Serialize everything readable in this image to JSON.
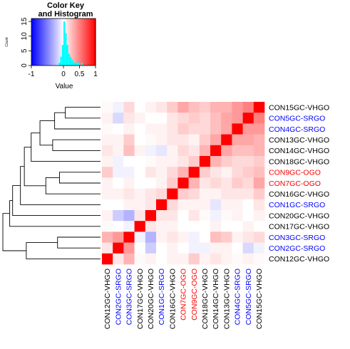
{
  "chart_data": {
    "type": "heatmap",
    "title": "",
    "colors": {
      "low": "#0000FF",
      "mid": "#FFFFFF",
      "high": "#FF0000",
      "histogram": "#00FFFF",
      "label_default": "#000000",
      "label_srgo": "#0000FF",
      "label_ogo": "#FF0000"
    },
    "color_key": {
      "title_line1": "Color Key",
      "title_line2": "and Histogram",
      "xlabel": "Value",
      "ylabel": "Count",
      "x_ticks": [
        "-1",
        "0",
        "0.5",
        "1"
      ],
      "x_tick_values": [
        -1,
        0,
        0.5,
        1
      ],
      "y_ticks": [
        "0",
        "5",
        "10",
        "15"
      ],
      "y_tick_values": [
        0,
        5,
        10,
        15
      ],
      "xlim": [
        -1,
        1
      ],
      "ylim": [
        0,
        16
      ],
      "histogram": [
        {
          "x0": -0.15,
          "x1": -0.1,
          "count": 1
        },
        {
          "x0": -0.1,
          "x1": -0.05,
          "count": 3
        },
        {
          "x0": -0.05,
          "x1": 0.0,
          "count": 7
        },
        {
          "x0": 0.0,
          "x1": 0.05,
          "count": 15
        },
        {
          "x0": 0.05,
          "x1": 0.1,
          "count": 11
        },
        {
          "x0": 0.1,
          "x1": 0.15,
          "count": 7
        },
        {
          "x0": 0.15,
          "x1": 0.2,
          "count": 4
        },
        {
          "x0": 0.2,
          "x1": 0.25,
          "count": 3
        },
        {
          "x0": 0.25,
          "x1": 0.3,
          "count": 2
        },
        {
          "x0": 0.3,
          "x1": 0.35,
          "count": 1
        },
        {
          "x0": 0.35,
          "x1": 0.4,
          "count": 1
        },
        {
          "x0": 0.4,
          "x1": 0.45,
          "count": 1
        },
        {
          "x0": 0.45,
          "x1": 0.5,
          "count": 1
        },
        {
          "x0": 0.55,
          "x1": 0.6,
          "count": 1
        }
      ]
    },
    "rows": [
      {
        "label": "CON15GC-VHGO",
        "group": "VHGO"
      },
      {
        "label": "CON5GC-SRGO",
        "group": "SRGO"
      },
      {
        "label": "CON4GC-SRGO",
        "group": "SRGO"
      },
      {
        "label": "CON13GC-VHGO",
        "group": "VHGO"
      },
      {
        "label": "CON14GC-VHGO",
        "group": "VHGO"
      },
      {
        "label": "CON18GC-VHGO",
        "group": "VHGO"
      },
      {
        "label": "CON9GC-OGO",
        "group": "OGO"
      },
      {
        "label": "CON7GC-OGO",
        "group": "OGO"
      },
      {
        "label": "CON16GC-VHGO",
        "group": "VHGO"
      },
      {
        "label": "CON1GC-SRGO",
        "group": "SRGO"
      },
      {
        "label": "CON20GC-VHGO",
        "group": "VHGO"
      },
      {
        "label": "CON17GC-VHGO",
        "group": "VHGO"
      },
      {
        "label": "CON3GC-SRGO",
        "group": "SRGO"
      },
      {
        "label": "CON2GC-SRGO",
        "group": "SRGO"
      },
      {
        "label": "CON12GC-VHGO",
        "group": "VHGO"
      }
    ],
    "columns": [
      {
        "label": "CON12GC-VHGO",
        "group": "VHGO"
      },
      {
        "label": "CON2GC-SRGO",
        "group": "SRGO"
      },
      {
        "label": "CON3GC-SRGO",
        "group": "SRGO"
      },
      {
        "label": "CON17GC-VHGO",
        "group": "VHGO"
      },
      {
        "label": "CON20GC-VHGO",
        "group": "VHGO"
      },
      {
        "label": "CON1GC-SRGO",
        "group": "SRGO"
      },
      {
        "label": "CON16GC-VHGO",
        "group": "VHGO"
      },
      {
        "label": "CON7GC-OGO",
        "group": "OGO"
      },
      {
        "label": "CON9GC-OGO",
        "group": "OGO"
      },
      {
        "label": "CON18GC-VHGO",
        "group": "VHGO"
      },
      {
        "label": "CON14GC-VHGO",
        "group": "VHGO"
      },
      {
        "label": "CON13GC-VHGO",
        "group": "VHGO"
      },
      {
        "label": "CON4GC-SRGO",
        "group": "SRGO"
      },
      {
        "label": "CON5GC-SRGO",
        "group": "SRGO"
      },
      {
        "label": "CON15GC-VHGO",
        "group": "VHGO"
      }
    ],
    "values": [
      [
        0.02,
        -0.05,
        0.15,
        0.0,
        0.05,
        0.1,
        0.2,
        0.35,
        0.25,
        0.2,
        0.3,
        0.3,
        0.4,
        0.5,
        1.0
      ],
      [
        0.05,
        -0.15,
        0.1,
        0.05,
        0.0,
        0.0,
        0.1,
        0.15,
        0.2,
        0.15,
        0.25,
        0.35,
        0.4,
        1.0,
        0.5
      ],
      [
        0.02,
        0.0,
        0.05,
        0.0,
        0.05,
        0.05,
        0.1,
        0.2,
        0.15,
        0.15,
        0.25,
        0.35,
        1.0,
        0.4,
        0.4
      ],
      [
        0.05,
        0.05,
        0.2,
        0.0,
        0.02,
        0.05,
        0.1,
        0.1,
        0.05,
        0.2,
        0.35,
        1.0,
        0.35,
        0.35,
        0.3
      ],
      [
        0.1,
        0.05,
        0.25,
        0.05,
        -0.05,
        -0.1,
        0.05,
        0.15,
        0.1,
        0.3,
        1.0,
        0.35,
        0.25,
        0.25,
        0.3
      ],
      [
        0.05,
        -0.05,
        0.0,
        0.0,
        0.02,
        0.05,
        0.05,
        0.1,
        0.2,
        1.0,
        0.3,
        0.2,
        0.15,
        0.15,
        0.2
      ],
      [
        0.2,
        -0.05,
        -0.05,
        0.0,
        0.1,
        0.05,
        0.15,
        0.3,
        1.0,
        0.2,
        0.1,
        0.05,
        0.15,
        0.2,
        0.25
      ],
      [
        0.05,
        0.0,
        0.05,
        0.0,
        0.0,
        0.05,
        0.2,
        1.0,
        0.3,
        0.1,
        0.15,
        0.1,
        0.2,
        0.15,
        0.35
      ],
      [
        0.05,
        0.05,
        0.1,
        0.05,
        0.1,
        0.15,
        1.0,
        0.2,
        0.15,
        0.05,
        0.05,
        0.1,
        0.1,
        0.1,
        0.2
      ],
      [
        0.0,
        0.0,
        0.05,
        0.05,
        0.1,
        1.0,
        0.15,
        0.05,
        0.05,
        0.05,
        -0.1,
        0.05,
        0.05,
        0.0,
        0.1
      ],
      [
        0.05,
        -0.2,
        -0.3,
        0.1,
        1.0,
        0.1,
        0.1,
        0.0,
        0.1,
        0.02,
        -0.05,
        0.02,
        0.05,
        0.0,
        0.05
      ],
      [
        0.02,
        0.0,
        -0.05,
        1.0,
        0.1,
        0.05,
        0.05,
        0.0,
        0.0,
        0.0,
        0.05,
        0.0,
        0.0,
        0.05,
        0.0
      ],
      [
        0.3,
        0.4,
        1.0,
        -0.05,
        -0.3,
        0.05,
        0.1,
        0.05,
        -0.05,
        0.0,
        0.25,
        0.2,
        0.05,
        0.1,
        0.15
      ],
      [
        0.1,
        1.0,
        0.4,
        0.0,
        -0.2,
        0.0,
        0.05,
        0.0,
        -0.05,
        -0.05,
        0.05,
        0.05,
        0.0,
        -0.15,
        -0.05
      ],
      [
        1.0,
        0.1,
        0.3,
        0.02,
        0.05,
        0.0,
        0.05,
        0.05,
        0.2,
        0.05,
        0.1,
        0.05,
        0.02,
        0.05,
        0.02
      ]
    ],
    "row_dendrogram": [
      {
        "a": 0,
        "b": 1,
        "h": 0.36
      },
      {
        "a": "m0",
        "b": 2,
        "h": 0.47
      },
      {
        "a": 3,
        "b": 4,
        "h": 0.49
      },
      {
        "a": "m1",
        "b": "m2",
        "h": 0.62
      },
      {
        "a": "m3",
        "b": 5,
        "h": 0.71
      },
      {
        "a": 6,
        "b": 7,
        "h": 0.42
      },
      {
        "a": "m5",
        "b": 8,
        "h": 0.56
      },
      {
        "a": "m4",
        "b": "m6",
        "h": 0.78
      },
      {
        "a": "m7",
        "b": 9,
        "h": 0.82
      },
      {
        "a": "m8",
        "b": 10,
        "h": 0.9
      },
      {
        "a": "m9",
        "b": 11,
        "h": 0.93
      },
      {
        "a": 12,
        "b": 13,
        "h": 0.44
      },
      {
        "a": "m11",
        "b": 14,
        "h": 0.76
      },
      {
        "a": "m10",
        "b": "m12",
        "h": 1.0
      }
    ],
    "legend": "top-left"
  }
}
